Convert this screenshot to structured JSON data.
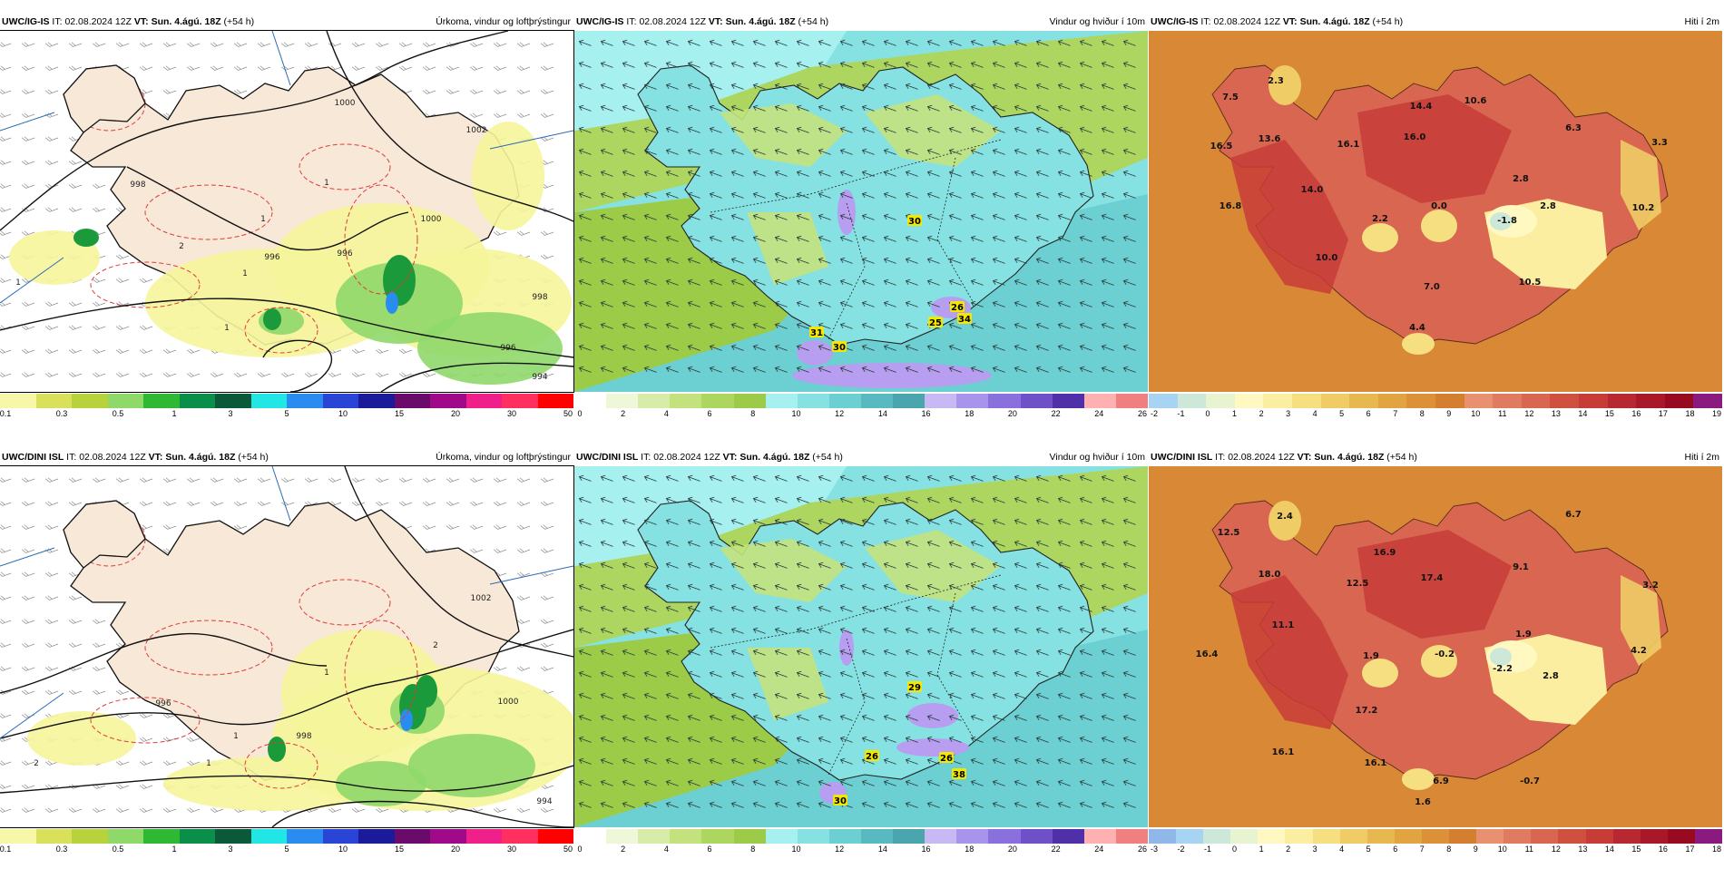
{
  "panels": [
    {
      "model": "UWC/IG-IS",
      "it_label": "IT:",
      "it_value": "02.08.2024 12Z",
      "vt_label": "VT:",
      "vt_value": "Sun. 4.ágú. 18Z",
      "lead": "(+54 h)",
      "title": "Úrkoma, vindur og loftþrýstingur",
      "colorbar": {
        "colors": [
          "#f7f7a8",
          "#d9e05a",
          "#b7d23a",
          "#8fd86a",
          "#2eb833",
          "#0a8f4a",
          "#0a5a3a",
          "#22e6e6",
          "#2a8cf0",
          "#2a44d6",
          "#1a1a9a",
          "#6a0a6a",
          "#a00a8a",
          "#f0208a",
          "#ff3060",
          "#ff0000"
        ],
        "labels": [
          "0.1",
          "0.3",
          "0.5",
          "1",
          "3",
          "5",
          "10",
          "15",
          "20",
          "30",
          "50"
        ]
      },
      "isobars": [
        "1000",
        "1002",
        "998",
        "996",
        "996",
        "1000",
        "998",
        "996",
        "994"
      ],
      "precip_labels": [
        "1",
        "1",
        "1",
        "2",
        "1",
        "1"
      ]
    },
    {
      "model": "UWC/IG-IS",
      "it_label": "IT:",
      "it_value": "02.08.2024 12Z",
      "vt_label": "VT:",
      "vt_value": "Sun. 4.ágú. 18Z",
      "lead": "(+54 h)",
      "title": "Vindur og hviður í 10m",
      "colorbar": {
        "colors": [
          "#ffffff",
          "#eef7d8",
          "#d6eca8",
          "#c3e27e",
          "#acd660",
          "#9ccb48",
          "#a6f0f0",
          "#86e2e2",
          "#6ccfd2",
          "#58b9c0",
          "#4aa6ae",
          "#c8b8f4",
          "#a894ec",
          "#8a70dc",
          "#6e50c8",
          "#5030a8",
          "#ffb0b0",
          "#f08080"
        ],
        "labels": [
          "0",
          "2",
          "4",
          "6",
          "8",
          "10",
          "12",
          "14",
          "16",
          "18",
          "20",
          "22",
          "24",
          "26"
        ]
      },
      "gusts": [
        "30",
        "26",
        "25",
        "34",
        "31",
        "30"
      ]
    },
    {
      "model": "UWC/IG-IS",
      "it_label": "IT:",
      "it_value": "02.08.2024 12Z",
      "vt_label": "VT:",
      "vt_value": "Sun. 4.ágú. 18Z",
      "lead": "(+54 h)",
      "title": "Hiti í 2m",
      "colorbar": {
        "colors": [
          "#a8d4f4",
          "#cde8d8",
          "#e8f4d0",
          "#fff8c0",
          "#fbeea0",
          "#f5df80",
          "#efcc66",
          "#e8b850",
          "#e2a440",
          "#dc9038",
          "#d47e30",
          "#e89070",
          "#e07a60",
          "#d86650",
          "#d05040",
          "#c83c38",
          "#b82830",
          "#a81828",
          "#980a20",
          "#8a1a80"
        ],
        "labels": [
          "-2",
          "-1",
          "0",
          "1",
          "2",
          "3",
          "4",
          "5",
          "6",
          "7",
          "8",
          "9",
          "10",
          "11",
          "12",
          "13",
          "14",
          "15",
          "16",
          "17",
          "18",
          "19"
        ]
      },
      "temps": [
        "2.3",
        "7.5",
        "14.4",
        "10.6",
        "6.3",
        "16.5",
        "13.6",
        "16.1",
        "16.0",
        "3.3",
        "14.0",
        "2.8",
        "16.8",
        "2.2",
        "0.0",
        "-1.8",
        "2.8",
        "10.2",
        "10.0",
        "7.0",
        "10.5",
        "4.4"
      ]
    },
    {
      "model": "UWC/DINI ISL",
      "it_label": "IT:",
      "it_value": "02.08.2024 12Z",
      "vt_label": "VT:",
      "vt_value": "Sun. 4.ágú. 18Z",
      "lead": "(+54 h)",
      "title": "Úrkoma, vindur og loftþrýstingur",
      "colorbar": {
        "colors": [
          "#f7f7a8",
          "#d9e05a",
          "#b7d23a",
          "#8fd86a",
          "#2eb833",
          "#0a8f4a",
          "#0a5a3a",
          "#22e6e6",
          "#2a8cf0",
          "#2a44d6",
          "#1a1a9a",
          "#6a0a6a",
          "#a00a8a",
          "#f0208a",
          "#ff3060",
          "#ff0000"
        ],
        "labels": [
          "0.1",
          "0.3",
          "0.5",
          "1",
          "3",
          "5",
          "10",
          "15",
          "20",
          "30",
          "50"
        ]
      },
      "isobars": [
        "1002",
        "996",
        "1000",
        "998",
        "994"
      ],
      "precip_labels": [
        "2",
        "1",
        "1",
        "2",
        "1"
      ]
    },
    {
      "model": "UWC/DINI ISL",
      "it_label": "IT:",
      "it_value": "02.08.2024 12Z",
      "vt_label": "VT:",
      "vt_value": "Sun. 4.ágú. 18Z",
      "lead": "(+54 h)",
      "title": "Vindur og hviður í 10m",
      "colorbar": {
        "colors": [
          "#ffffff",
          "#eef7d8",
          "#d6eca8",
          "#c3e27e",
          "#acd660",
          "#9ccb48",
          "#a6f0f0",
          "#86e2e2",
          "#6ccfd2",
          "#58b9c0",
          "#4aa6ae",
          "#c8b8f4",
          "#a894ec",
          "#8a70dc",
          "#6e50c8",
          "#5030a8",
          "#ffb0b0",
          "#f08080"
        ],
        "labels": [
          "0",
          "2",
          "4",
          "6",
          "8",
          "10",
          "12",
          "14",
          "16",
          "18",
          "20",
          "22",
          "24",
          "26"
        ]
      },
      "gusts": [
        "29",
        "26",
        "38",
        "26",
        "30"
      ]
    },
    {
      "model": "UWC/DINI ISL",
      "it_label": "IT:",
      "it_value": "02.08.2024 12Z",
      "vt_label": "VT:",
      "vt_value": "Sun. 4.ágú. 18Z",
      "lead": "(+54 h)",
      "title": "Hiti í 2m",
      "colorbar": {
        "colors": [
          "#8fb8e8",
          "#a8d4f4",
          "#cde8d8",
          "#e8f4d0",
          "#fff8c0",
          "#fbeea0",
          "#f5df80",
          "#efcc66",
          "#e8b850",
          "#e2a440",
          "#dc9038",
          "#d47e30",
          "#e89070",
          "#e07a60",
          "#d86650",
          "#d05040",
          "#c83c38",
          "#b82830",
          "#a81828",
          "#980a20",
          "#8a1a80"
        ],
        "labels": [
          "-3",
          "-2",
          "-1",
          "0",
          "1",
          "2",
          "3",
          "4",
          "5",
          "6",
          "7",
          "8",
          "9",
          "10",
          "11",
          "12",
          "13",
          "14",
          "15",
          "16",
          "17",
          "18"
        ]
      },
      "temps": [
        "2.4",
        "6.7",
        "12.5",
        "16.9",
        "9.1",
        "18.0",
        "12.5",
        "17.4",
        "3.2",
        "11.1",
        "1.9",
        "4.2",
        "16.4",
        "1.9",
        "-0.2",
        "-2.2",
        "2.8",
        "17.2",
        "16.1",
        "16.1",
        "6.9",
        "-0.7",
        "1.6"
      ]
    }
  ]
}
